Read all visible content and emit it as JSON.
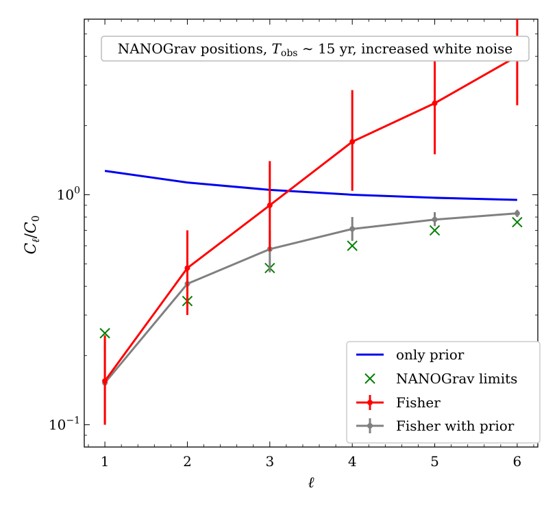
{
  "chart_data": {
    "type": "line",
    "title": "NANOGrav positions, T_obs ∼ 15 yr, increased white noise",
    "xlabel": "ℓ",
    "ylabel": "C_ℓ/C_0",
    "yscale": "log",
    "xlim": [
      0.75,
      6.25
    ],
    "ylim": [
      0.08,
      5.8
    ],
    "x": [
      1,
      2,
      3,
      4,
      5,
      6
    ],
    "xticks": [
      "1",
      "2",
      "3",
      "4",
      "5",
      "6"
    ],
    "yticks": [
      {
        "value": 1,
        "label": "10",
        "exp": "0"
      },
      {
        "value": 0.1,
        "label": "10",
        "exp": "−1"
      }
    ],
    "legend_position": "bottom-right",
    "series": [
      {
        "name": "only prior",
        "kind": "line",
        "color": "#0000ee",
        "values": [
          1.27,
          1.13,
          1.05,
          1.0,
          0.97,
          0.95
        ]
      },
      {
        "name": "NANOGrav limits",
        "kind": "marker-x",
        "color": "#008000",
        "values": [
          0.25,
          0.345,
          0.48,
          0.6,
          0.7,
          0.76
        ]
      },
      {
        "name": "Fisher",
        "kind": "errorbar",
        "color": "#ff0000",
        "values": [
          0.155,
          0.48,
          0.9,
          1.7,
          2.5,
          4.0
        ],
        "lower": [
          0.1,
          0.3,
          0.57,
          1.04,
          1.5,
          2.45
        ],
        "upper": [
          0.245,
          0.7,
          1.4,
          2.85,
          4.1,
          5.8
        ]
      },
      {
        "name": "Fisher with prior",
        "kind": "errorbar",
        "color": "#808080",
        "values": [
          0.152,
          0.41,
          0.58,
          0.71,
          0.78,
          0.83
        ],
        "lower": [
          0.1,
          0.31,
          0.46,
          0.63,
          0.73,
          0.8
        ],
        "upper": [
          0.235,
          0.53,
          0.7,
          0.8,
          0.84,
          0.86
        ]
      }
    ],
    "title_parts": {
      "pre": "NANOGrav positions, ",
      "T": "T",
      "sub": "obs",
      "post": " ∼ 15 yr, increased white noise"
    },
    "ylabel_parts": {
      "C": "C",
      "sub1": "ℓ",
      "slash": "/",
      "C2": "C",
      "sub2": "0"
    }
  }
}
